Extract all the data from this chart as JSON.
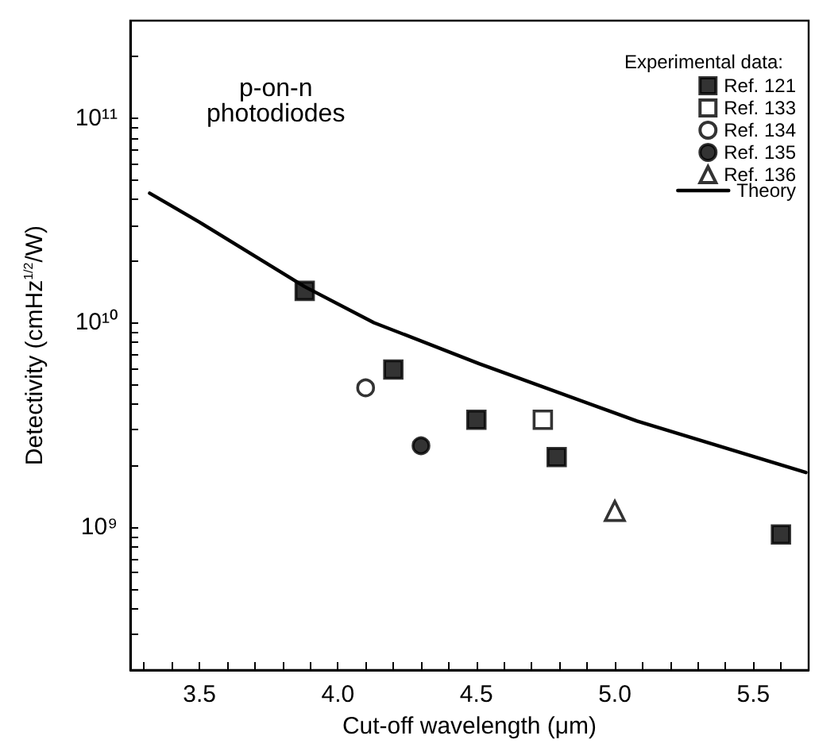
{
  "chart_data": {
    "type": "scatter",
    "xlabel": "Cut-off wavelength (μm)",
    "ylabel": "Detectivity (cmHz$^{1/2}$/W)",
    "legend_title": "Experimental data:",
    "annotations": [
      "p-on-n\nphotodiodes"
    ],
    "log": "y",
    "xlim": [
      3.25,
      5.7
    ],
    "xticks": [
      {
        "value": 3.3,
        "label": null
      },
      {
        "value": 3.4,
        "label": null
      },
      3.5,
      {
        "value": 3.6,
        "label": null
      },
      {
        "value": 3.7,
        "label": null
      },
      {
        "value": 3.8,
        "label": null
      },
      {
        "value": 3.9,
        "label": null
      },
      {
        "value": 4.0,
        "label": "4.0"
      },
      {
        "value": 4.1,
        "label": null
      },
      {
        "value": 4.2,
        "label": null
      },
      {
        "value": 4.3,
        "label": null
      },
      {
        "value": 4.4,
        "label": null
      },
      4.5,
      {
        "value": 4.6,
        "label": null
      },
      {
        "value": 4.7,
        "label": null
      },
      {
        "value": 4.8,
        "label": null
      },
      {
        "value": 4.9,
        "label": null
      },
      {
        "value": 5.0,
        "label": "5.0"
      },
      {
        "value": 5.1,
        "label": null
      },
      {
        "value": 5.2,
        "label": null
      },
      {
        "value": 5.3,
        "label": null
      },
      {
        "value": 5.4,
        "label": null
      },
      5.5,
      {
        "value": 5.6,
        "label": null
      }
    ],
    "ylim": [
      200000000.0,
      300000000000.0
    ],
    "yticks": [
      {
        "value": 300000000.0,
        "label": null
      },
      {
        "value": 400000000.0,
        "label": null
      },
      {
        "value": 500000000.0,
        "label": null
      },
      {
        "value": 600000000.0,
        "label": null
      },
      {
        "value": 700000000.0,
        "label": null
      },
      {
        "value": 800000000.0,
        "label": null
      },
      {
        "value": 900000000.0,
        "label": null
      },
      {
        "value": 1000000000.0,
        "label": "10⁹"
      },
      {
        "value": 2000000000.0,
        "label": null
      },
      {
        "value": 3000000000.0,
        "label": null
      },
      {
        "value": 4000000000.0,
        "label": null
      },
      {
        "value": 5000000000.0,
        "label": null
      },
      {
        "value": 6000000000.0,
        "label": null
      },
      {
        "value": 7000000000.0,
        "label": null
      },
      {
        "value": 8000000000.0,
        "label": null
      },
      {
        "value": 9000000000.0,
        "label": null
      },
      {
        "value": 10000000000.0,
        "label": "10¹⁰"
      },
      {
        "value": 20000000000.0,
        "label": null
      },
      {
        "value": 30000000000.0,
        "label": null
      },
      {
        "value": 40000000000.0,
        "label": null
      },
      {
        "value": 50000000000.0,
        "label": null
      },
      {
        "value": 60000000000.0,
        "label": null
      },
      {
        "value": 70000000000.0,
        "label": null
      },
      {
        "value": 80000000000.0,
        "label": null
      },
      {
        "value": 90000000000.0,
        "label": null
      },
      {
        "value": 100000000000.0,
        "label": "10¹¹"
      },
      {
        "value": 200000000000.0,
        "label": null
      }
    ],
    "grid": false,
    "legend": "top right",
    "series": [
      {
        "name": "Ref. 121",
        "color": "#000000",
        "marker": "square",
        "x": [
          3.88,
          4.2,
          4.5,
          4.79,
          5.6
        ],
        "values": [
          14300000000.0,
          5900000000.0,
          3350000000.0,
          2200000000.0,
          920000000.0
        ]
      },
      {
        "name": "Ref. 133",
        "color": "#ffffff",
        "marker": "square",
        "x": [
          4.74
        ],
        "values": [
          3350000000.0
        ]
      },
      {
        "name": "Ref. 134",
        "color": "#ffffff",
        "marker": "circle",
        "x": [
          4.1
        ],
        "values": [
          4800000000.0
        ]
      },
      {
        "name": "Ref. 135",
        "color": "#000000",
        "marker": "circle",
        "x": [
          4.3
        ],
        "values": [
          2500000000.0
        ]
      },
      {
        "name": "Ref. 136",
        "color": "#ffffff",
        "marker": "triangle",
        "x": [
          5.0
        ],
        "values": [
          1200000000.0
        ]
      },
      {
        "name": "Theory",
        "type": "line",
        "color": "#000000",
        "marker": "none",
        "line_style": "solid",
        "x": [
          3.32,
          3.5,
          3.88,
          4.13,
          4.51,
          5.08,
          5.69
        ],
        "values": [
          43000000000.0,
          31000000000.0,
          15000000000.0,
          10000000000.0,
          6300000000.0,
          3300000000.0,
          1850000000.0
        ]
      }
    ]
  }
}
